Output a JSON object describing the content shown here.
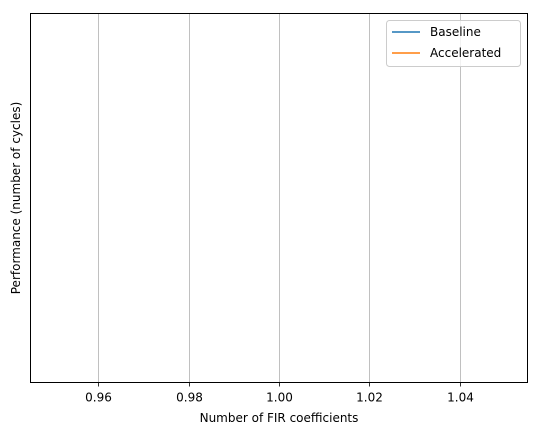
{
  "chart_data": {
    "type": "line",
    "title": "",
    "xlabel": "Number of FIR coefficients",
    "ylabel": "Performance (number of cycles)",
    "xlim": [
      0.945,
      1.055
    ],
    "xticks": [
      0.96,
      0.98,
      1.0,
      1.02,
      1.04
    ],
    "xtick_labels": [
      "0.96",
      "0.98",
      "1.00",
      "1.02",
      "1.04"
    ],
    "x_grid": true,
    "y_grid": false,
    "legend_position": "top-right",
    "series": [
      {
        "name": "Baseline",
        "color": "#1f77b4",
        "x": [],
        "y": []
      },
      {
        "name": "Accelerated",
        "color": "#ff7f0e",
        "x": [],
        "y": []
      }
    ]
  }
}
